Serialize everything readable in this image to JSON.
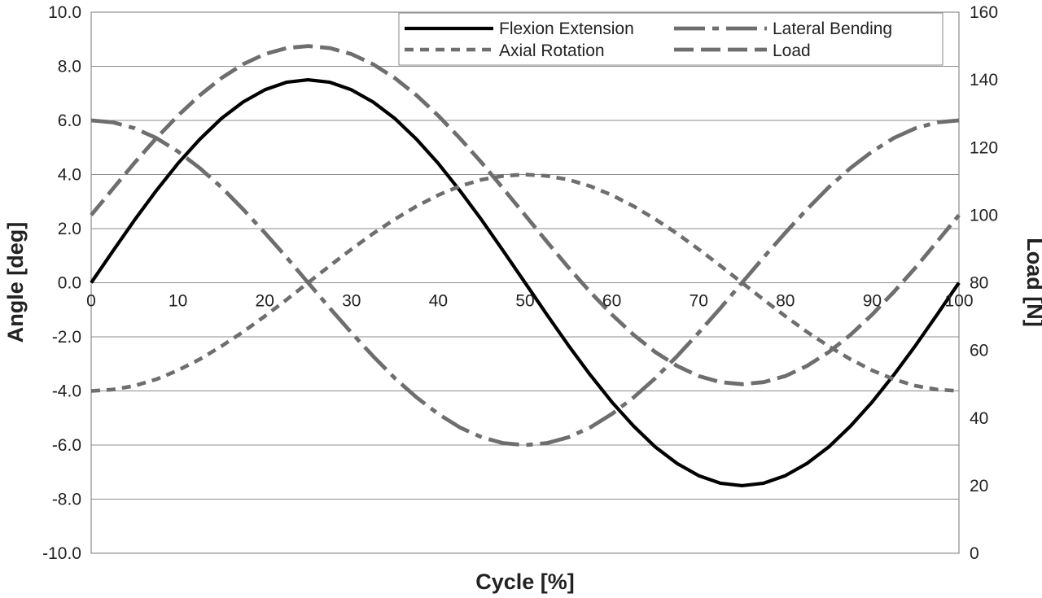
{
  "chart_data": {
    "type": "line",
    "title": "",
    "xlabel": "Cycle [%]",
    "ylabel_left": "Angle [deg]",
    "ylabel_right": "Load [N]",
    "xlim": [
      0,
      100
    ],
    "xticks": [
      0,
      10,
      20,
      30,
      40,
      50,
      60,
      70,
      80,
      90,
      100
    ],
    "ylim_left": [
      -10,
      10
    ],
    "yticks_left": [
      "-10.0",
      "-8.0",
      "-6.0",
      "-4.0",
      "-2.0",
      "0.0",
      "2.0",
      "4.0",
      "6.0",
      "8.0",
      "10.0"
    ],
    "ylim_right": [
      0,
      160
    ],
    "yticks_right": [
      0,
      20,
      40,
      60,
      80,
      100,
      120,
      140,
      160
    ],
    "grid": true,
    "legend_position": "top-right",
    "x": [
      0,
      2.5,
      5,
      7.5,
      10,
      12.5,
      15,
      17.5,
      20,
      22.5,
      25,
      27.5,
      30,
      32.5,
      35,
      37.5,
      40,
      42.5,
      45,
      47.5,
      50,
      52.5,
      55,
      57.5,
      60,
      62.5,
      65,
      67.5,
      70,
      72.5,
      75,
      77.5,
      80,
      82.5,
      85,
      87.5,
      90,
      92.5,
      95,
      97.5,
      100
    ],
    "series": [
      {
        "name": "Flexion Extension",
        "axis": "left",
        "style": "solid",
        "color": "#000000",
        "values": [
          0.0,
          1.17,
          2.32,
          3.4,
          4.41,
          5.3,
          6.07,
          6.68,
          7.13,
          7.41,
          7.5,
          7.41,
          7.13,
          6.68,
          6.07,
          5.3,
          4.41,
          3.4,
          2.32,
          1.17,
          0.0,
          -1.17,
          -2.32,
          -3.4,
          -4.41,
          -5.3,
          -6.07,
          -6.68,
          -7.13,
          -7.41,
          -7.5,
          -7.41,
          -7.13,
          -6.68,
          -6.07,
          -5.3,
          -4.41,
          -3.4,
          -2.32,
          -1.17,
          0.0
        ]
      },
      {
        "name": "Lateral Bending",
        "axis": "left",
        "style": "long-dash-dot",
        "color": "#6e6e6e",
        "values": [
          6.0,
          5.93,
          5.71,
          5.35,
          4.85,
          4.24,
          3.53,
          2.72,
          1.85,
          0.94,
          0.0,
          -0.94,
          -1.85,
          -2.72,
          -3.53,
          -4.24,
          -4.85,
          -5.35,
          -5.71,
          -5.93,
          -6.0,
          -5.93,
          -5.71,
          -5.35,
          -4.85,
          -4.24,
          -3.53,
          -2.72,
          -1.85,
          -0.94,
          0.0,
          0.94,
          1.85,
          2.72,
          3.53,
          4.24,
          4.85,
          5.35,
          5.71,
          5.93,
          6.0
        ]
      },
      {
        "name": "Axial Rotation",
        "axis": "left",
        "style": "short-dash",
        "color": "#6e6e6e",
        "values": [
          -4.0,
          -3.95,
          -3.81,
          -3.57,
          -3.24,
          -2.83,
          -2.35,
          -1.82,
          -1.24,
          -0.63,
          0.0,
          0.63,
          1.24,
          1.82,
          2.35,
          2.83,
          3.24,
          3.57,
          3.81,
          3.95,
          4.0,
          3.95,
          3.81,
          3.57,
          3.24,
          2.83,
          2.35,
          1.82,
          1.24,
          0.63,
          0.0,
          -0.63,
          -1.24,
          -1.82,
          -2.35,
          -2.83,
          -3.24,
          -3.57,
          -3.81,
          -3.95,
          -4.0
        ]
      },
      {
        "name": "Load",
        "axis": "right",
        "style": "dash",
        "color": "#6e6e6e",
        "values": [
          100.0,
          107.8,
          115.5,
          122.7,
          129.4,
          135.4,
          140.5,
          144.6,
          147.6,
          149.4,
          150.0,
          149.4,
          147.6,
          144.6,
          140.5,
          135.4,
          129.4,
          122.7,
          115.5,
          107.8,
          100.0,
          92.2,
          84.5,
          77.3,
          70.6,
          64.6,
          59.5,
          55.4,
          52.4,
          50.6,
          50.0,
          50.6,
          52.4,
          55.4,
          59.5,
          64.6,
          70.6,
          77.3,
          84.5,
          92.2,
          100.0
        ]
      }
    ]
  }
}
